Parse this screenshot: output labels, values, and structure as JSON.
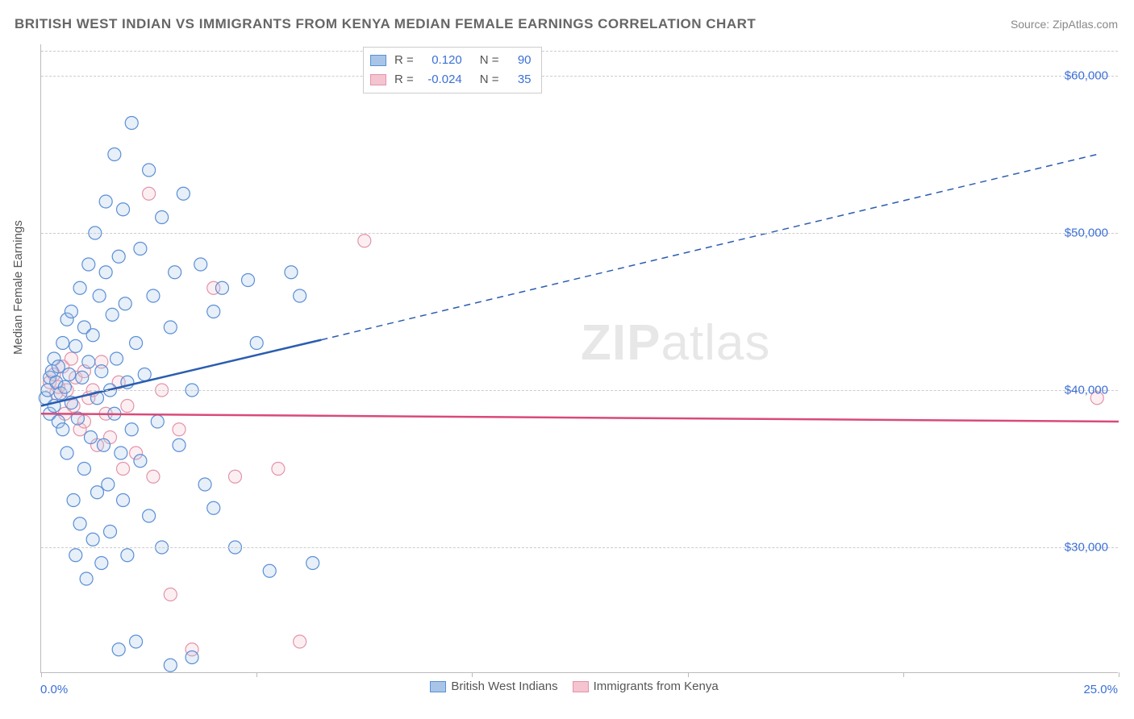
{
  "title": "BRITISH WEST INDIAN VS IMMIGRANTS FROM KENYA MEDIAN FEMALE EARNINGS CORRELATION CHART",
  "source_label": "Source:",
  "source_name": "ZipAtlas.com",
  "ylabel": "Median Female Earnings",
  "watermark_bold": "ZIP",
  "watermark_rest": "atlas",
  "chart": {
    "type": "scatter",
    "xlim": [
      0,
      25
    ],
    "ylim": [
      22000,
      62000
    ],
    "x_tick_positions": [
      0,
      5,
      10,
      15,
      20,
      25
    ],
    "x_label_min": "0.0%",
    "x_label_max": "25.0%",
    "y_gridlines": [
      30000,
      40000,
      50000,
      60000
    ],
    "y_tick_labels": [
      "$30,000",
      "$40,000",
      "$50,000",
      "$60,000"
    ],
    "background_color": "#ffffff",
    "grid_color": "#cccccc",
    "axis_color": "#bbbbbb",
    "tick_label_color": "#3b6fd6",
    "marker_radius": 8,
    "marker_stroke_width": 1.2,
    "marker_fill_opacity": 0.28,
    "series": [
      {
        "name": "British West Indians",
        "stroke": "#5a8fd6",
        "fill": "#a8c5e8",
        "line_color": "#2a5db0",
        "R": "0.120",
        "N": "90",
        "points": [
          [
            0.1,
            39500
          ],
          [
            0.15,
            40000
          ],
          [
            0.2,
            40800
          ],
          [
            0.2,
            38500
          ],
          [
            0.25,
            41200
          ],
          [
            0.3,
            39000
          ],
          [
            0.3,
            42000
          ],
          [
            0.35,
            40500
          ],
          [
            0.4,
            38000
          ],
          [
            0.4,
            41500
          ],
          [
            0.45,
            39800
          ],
          [
            0.5,
            43000
          ],
          [
            0.5,
            37500
          ],
          [
            0.55,
            40200
          ],
          [
            0.6,
            44500
          ],
          [
            0.6,
            36000
          ],
          [
            0.65,
            41000
          ],
          [
            0.7,
            39200
          ],
          [
            0.7,
            45000
          ],
          [
            0.75,
            33000
          ],
          [
            0.8,
            42800
          ],
          [
            0.8,
            29500
          ],
          [
            0.85,
            38200
          ],
          [
            0.9,
            46500
          ],
          [
            0.9,
            31500
          ],
          [
            0.95,
            40800
          ],
          [
            1.0,
            35000
          ],
          [
            1.0,
            44000
          ],
          [
            1.05,
            28000
          ],
          [
            1.1,
            41800
          ],
          [
            1.1,
            48000
          ],
          [
            1.15,
            37000
          ],
          [
            1.2,
            43500
          ],
          [
            1.2,
            30500
          ],
          [
            1.25,
            50000
          ],
          [
            1.3,
            39500
          ],
          [
            1.3,
            33500
          ],
          [
            1.35,
            46000
          ],
          [
            1.4,
            41200
          ],
          [
            1.4,
            29000
          ],
          [
            1.45,
            36500
          ],
          [
            1.5,
            47500
          ],
          [
            1.5,
            52000
          ],
          [
            1.55,
            34000
          ],
          [
            1.6,
            40000
          ],
          [
            1.6,
            31000
          ],
          [
            1.65,
            44800
          ],
          [
            1.7,
            55000
          ],
          [
            1.7,
            38500
          ],
          [
            1.75,
            42000
          ],
          [
            1.8,
            23500
          ],
          [
            1.8,
            48500
          ],
          [
            1.85,
            36000
          ],
          [
            1.9,
            51500
          ],
          [
            1.9,
            33000
          ],
          [
            1.95,
            45500
          ],
          [
            2.0,
            29500
          ],
          [
            2.0,
            40500
          ],
          [
            2.1,
            57000
          ],
          [
            2.1,
            37500
          ],
          [
            2.2,
            43000
          ],
          [
            2.2,
            24000
          ],
          [
            2.3,
            49000
          ],
          [
            2.3,
            35500
          ],
          [
            2.4,
            41000
          ],
          [
            2.5,
            54000
          ],
          [
            2.5,
            32000
          ],
          [
            2.6,
            46000
          ],
          [
            2.7,
            38000
          ],
          [
            2.8,
            51000
          ],
          [
            2.8,
            30000
          ],
          [
            3.0,
            44000
          ],
          [
            3.0,
            22500
          ],
          [
            3.1,
            47500
          ],
          [
            3.2,
            36500
          ],
          [
            3.3,
            52500
          ],
          [
            3.5,
            40000
          ],
          [
            3.5,
            23000
          ],
          [
            3.7,
            48000
          ],
          [
            3.8,
            34000
          ],
          [
            4.0,
            45000
          ],
          [
            4.0,
            32500
          ],
          [
            4.2,
            46500
          ],
          [
            4.5,
            30000
          ],
          [
            4.8,
            47000
          ],
          [
            5.0,
            43000
          ],
          [
            5.3,
            28500
          ],
          [
            5.8,
            47500
          ],
          [
            6.0,
            46000
          ],
          [
            6.3,
            29000
          ]
        ],
        "trend": {
          "x1": 0,
          "y1": 39000,
          "x2": 6.5,
          "y2": 43200,
          "x2_ext": 24.5,
          "y2_ext": 55000
        }
      },
      {
        "name": "Immigrants from Kenya",
        "stroke": "#e394aa",
        "fill": "#f4c4d0",
        "line_color": "#d94a78",
        "R": "-0.024",
        "N": "35",
        "points": [
          [
            0.2,
            40500
          ],
          [
            0.3,
            41000
          ],
          [
            0.35,
            39800
          ],
          [
            0.4,
            40200
          ],
          [
            0.5,
            41500
          ],
          [
            0.55,
            38500
          ],
          [
            0.6,
            40000
          ],
          [
            0.7,
            42000
          ],
          [
            0.75,
            39000
          ],
          [
            0.8,
            40800
          ],
          [
            0.9,
            37500
          ],
          [
            1.0,
            41200
          ],
          [
            1.0,
            38000
          ],
          [
            1.1,
            39500
          ],
          [
            1.2,
            40000
          ],
          [
            1.3,
            36500
          ],
          [
            1.4,
            41800
          ],
          [
            1.5,
            38500
          ],
          [
            1.6,
            37000
          ],
          [
            1.8,
            40500
          ],
          [
            1.9,
            35000
          ],
          [
            2.0,
            39000
          ],
          [
            2.2,
            36000
          ],
          [
            2.5,
            52500
          ],
          [
            2.6,
            34500
          ],
          [
            2.8,
            40000
          ],
          [
            3.0,
            27000
          ],
          [
            3.2,
            37500
          ],
          [
            3.5,
            23500
          ],
          [
            4.0,
            46500
          ],
          [
            4.5,
            34500
          ],
          [
            5.5,
            35000
          ],
          [
            6.0,
            24000
          ],
          [
            7.5,
            49500
          ],
          [
            24.5,
            39500
          ]
        ],
        "trend": {
          "x1": 0,
          "y1": 38500,
          "x2": 25,
          "y2": 38000
        }
      }
    ],
    "stats_box": {
      "R_label": "R =",
      "N_label": "N ="
    },
    "legend_bottom": {
      "items": [
        "British West Indians",
        "Immigrants from Kenya"
      ]
    }
  }
}
